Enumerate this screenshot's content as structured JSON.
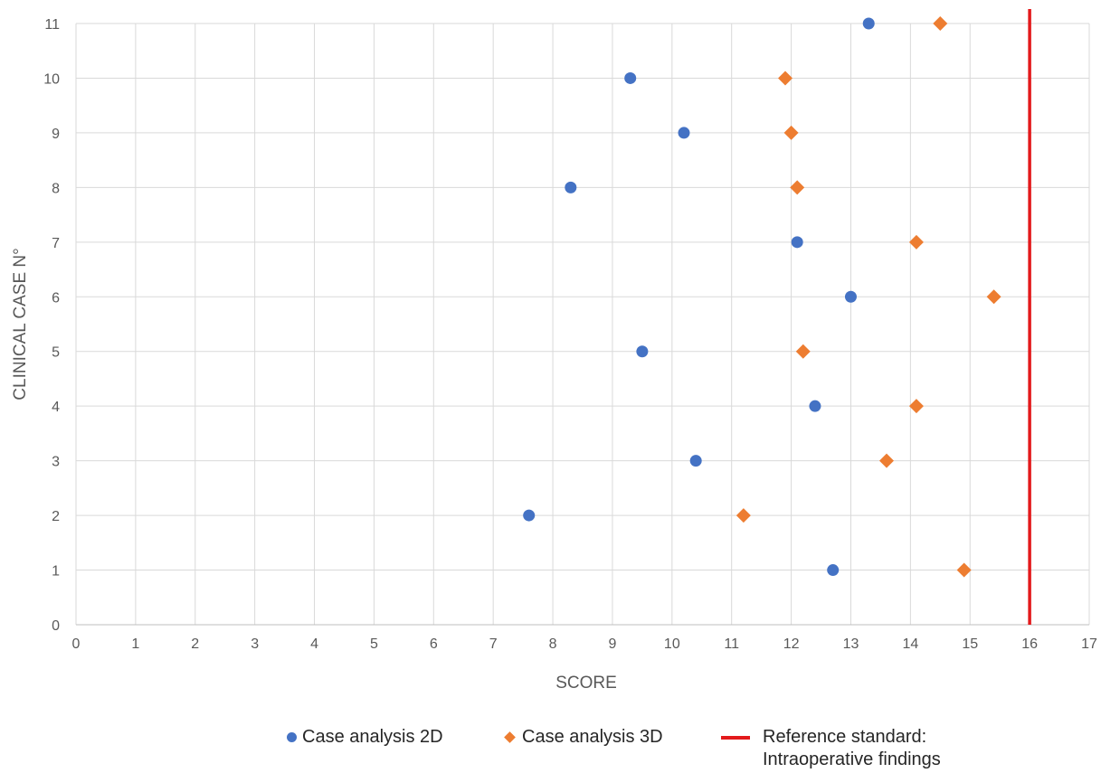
{
  "chart_data": {
    "type": "scatter",
    "title": "",
    "xlabel": "SCORE",
    "ylabel": "CLINICAL CASE N°",
    "xlim": [
      0,
      17
    ],
    "ylim": [
      0,
      11
    ],
    "xticks": [
      "0",
      "1",
      "2",
      "3",
      "4",
      "5",
      "6",
      "7",
      "8",
      "9",
      "10",
      "11",
      "12",
      "13",
      "14",
      "15",
      "16",
      "17"
    ],
    "yticks": [
      "0",
      "1",
      "2",
      "3",
      "4",
      "5",
      "6",
      "7",
      "8",
      "9",
      "10",
      "11"
    ],
    "grid": true,
    "legend_position": "bottom",
    "series": [
      {
        "name": "Case analysis 2D",
        "marker": "circle",
        "color": "#4472C4",
        "points": [
          {
            "x": 12.7,
            "y": 1
          },
          {
            "x": 7.6,
            "y": 2
          },
          {
            "x": 10.4,
            "y": 3
          },
          {
            "x": 12.4,
            "y": 4
          },
          {
            "x": 9.5,
            "y": 5
          },
          {
            "x": 13.0,
            "y": 6
          },
          {
            "x": 12.1,
            "y": 7
          },
          {
            "x": 8.3,
            "y": 8
          },
          {
            "x": 10.2,
            "y": 9
          },
          {
            "x": 9.3,
            "y": 10
          },
          {
            "x": 13.3,
            "y": 11
          }
        ]
      },
      {
        "name": "Case analysis 3D",
        "marker": "diamond",
        "color": "#ED7D31",
        "points": [
          {
            "x": 14.9,
            "y": 1
          },
          {
            "x": 11.2,
            "y": 2
          },
          {
            "x": 13.6,
            "y": 3
          },
          {
            "x": 14.1,
            "y": 4
          },
          {
            "x": 12.2,
            "y": 5
          },
          {
            "x": 15.4,
            "y": 6
          },
          {
            "x": 14.1,
            "y": 7
          },
          {
            "x": 12.1,
            "y": 8
          },
          {
            "x": 12.0,
            "y": 9
          },
          {
            "x": 11.9,
            "y": 10
          },
          {
            "x": 14.5,
            "y": 11
          }
        ]
      }
    ],
    "reference_line": {
      "name": "Reference standard:\nIntraoperative findings",
      "x": 16,
      "color": "#E31A1C"
    }
  },
  "legend": {
    "items": [
      {
        "label": "Case analysis 2D"
      },
      {
        "label": "Case analysis 3D"
      },
      {
        "label": "Reference standard:\nIntraoperative findings"
      }
    ]
  }
}
